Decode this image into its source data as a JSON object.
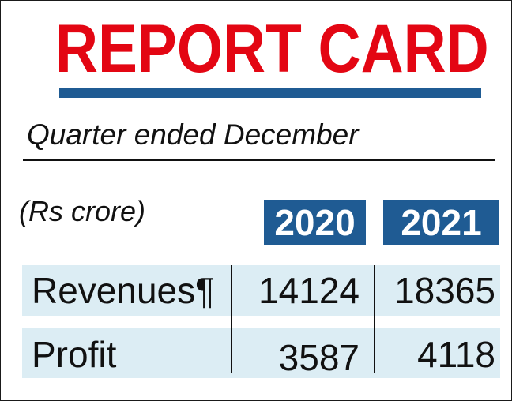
{
  "header": {
    "title": "REPORT CARD",
    "subtitle": "Quarter ended December",
    "unit": "(Rs crore)"
  },
  "colors": {
    "title": "#e30613",
    "accent": "#1f5b93",
    "row_background": "#dcedf4"
  },
  "chart_data": {
    "type": "table",
    "columns": [
      "2020",
      "2021"
    ],
    "rows": [
      {
        "label": "Revenues¶",
        "values": [
          "14124",
          "18365"
        ]
      },
      {
        "label": "Profit",
        "values": [
          "3587",
          "4118"
        ]
      }
    ]
  }
}
